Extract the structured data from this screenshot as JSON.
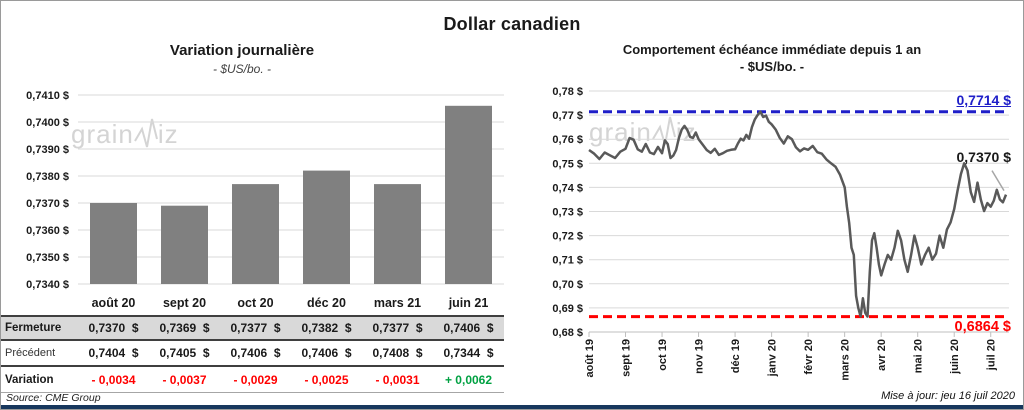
{
  "page": {
    "title": "Dollar canadien",
    "source": "Source: CME Group",
    "updated": "Mise à jour: jeu 16 juil 2020",
    "watermark": {
      "prefix": "grain",
      "suffix": "iz"
    }
  },
  "chart_data": [
    {
      "type": "bar",
      "title": "Variation  journalière",
      "subtitle": "- $US/bo. -",
      "categories": [
        "août 20",
        "sept 20",
        "oct 20",
        "déc 20",
        "mars 21",
        "juin 21"
      ],
      "values": [
        0.737,
        0.7369,
        0.7377,
        0.7382,
        0.7377,
        0.7406
      ],
      "ylabel": "$US/bo.",
      "ylim": [
        0.734,
        0.741
      ],
      "ytick_step": 0.001,
      "ytick_format": "0,0000 $",
      "bar_color": "#808080",
      "grid_color": "#d9d9d9"
    },
    {
      "type": "line",
      "title": "Comportement échéance immédiate depuis 1 an",
      "subtitle": "- $US/bo. -",
      "x_labels": [
        "août 19",
        "sept 19",
        "oct 19",
        "nov 19",
        "déc 19",
        "janv 20",
        "févr 20",
        "mars 20",
        "avr 20",
        "mai 20",
        "juin 20",
        "juil 20"
      ],
      "x_domain": [
        0,
        11.5
      ],
      "ylim": [
        0.68,
        0.78
      ],
      "ytick_step": 0.01,
      "line_color": "#595959",
      "grid_color": "#d9d9d9",
      "high_line": {
        "value": 0.7714,
        "label": "0,7714 $",
        "color": "#1e1ec8"
      },
      "low_line": {
        "value": 0.6864,
        "label": "0,6864 $",
        "color": "#ff0000"
      },
      "last_value": 0.737,
      "last_label": "0,7370 $",
      "monthly_values": [
        [
          0.7555,
          0.754,
          0.7518,
          0.7545,
          0.7533,
          0.7522,
          0.7548
        ],
        [
          0.756,
          0.7605,
          0.7598,
          0.7558,
          0.7548,
          0.758,
          0.7545,
          0.7538,
          0.7568
        ],
        [
          0.7542,
          0.7595,
          0.758,
          0.7522,
          0.7532,
          0.7555,
          0.7605,
          0.764,
          0.7655,
          0.7638,
          0.761,
          0.7605,
          0.7628
        ],
        [
          0.76,
          0.7578,
          0.7555,
          0.7543,
          0.756,
          0.7535,
          0.7542,
          0.7552,
          0.7556
        ],
        [
          0.7558,
          0.7582,
          0.7602,
          0.7595,
          0.7618,
          0.7602,
          0.765,
          0.7682,
          0.77,
          0.7714,
          0.7692,
          0.7698,
          0.7672
        ],
        [
          0.7662,
          0.764,
          0.7606,
          0.7582,
          0.7612,
          0.76,
          0.7566,
          0.755,
          0.7562
        ],
        [
          0.7556,
          0.7572,
          0.7546,
          0.754,
          0.7516,
          0.75,
          0.7486,
          0.7452
        ],
        [
          0.74,
          0.732,
          0.7252,
          0.715,
          0.712,
          0.695,
          0.69,
          0.6864,
          0.694,
          0.688,
          0.6864,
          0.705,
          0.718,
          0.721,
          0.715,
          0.708
        ],
        [
          0.7035,
          0.708,
          0.712,
          0.71,
          0.715,
          0.722,
          0.718,
          0.71,
          0.705,
          0.712,
          0.72
        ],
        [
          0.715,
          0.708,
          0.712,
          0.715,
          0.71,
          0.7125,
          0.72,
          0.715,
          0.7225,
          0.7255
        ],
        [
          0.731,
          0.7385,
          0.7455,
          0.75,
          0.747,
          0.738,
          0.734,
          0.742,
          0.735,
          0.7302,
          0.7335
        ],
        [
          0.732,
          0.7345,
          0.739,
          0.735,
          0.7338,
          0.737
        ]
      ]
    }
  ],
  "table": {
    "columns": [
      "août 20",
      "sept 20",
      "oct 20",
      "déc 20",
      "mars 21",
      "juin 21"
    ],
    "rows": [
      {
        "label": "Fermeture",
        "values": [
          "0,7370  $",
          "0,7369  $",
          "0,7377  $",
          "0,7382  $",
          "0,7377  $",
          "0,7406  $"
        ]
      },
      {
        "label": "Précédent",
        "values": [
          "0,7404  $",
          "0,7405  $",
          "0,7406  $",
          "0,7406  $",
          "0,7408  $",
          "0,7344  $"
        ]
      },
      {
        "label": "Variation",
        "values": [
          "- 0,0034",
          "- 0,0037",
          "- 0,0029",
          "- 0,0025",
          "- 0,0031",
          "+ 0,0062"
        ]
      }
    ],
    "variation_colors": {
      "positive": "#00a142",
      "negative": "#ff0000"
    }
  }
}
